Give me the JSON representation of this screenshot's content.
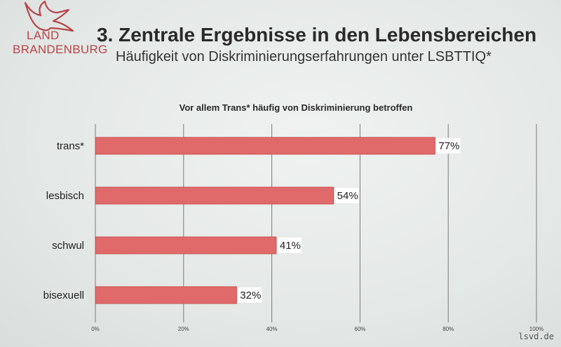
{
  "logo": {
    "line1": "LAND",
    "line2": "BRANDENBURG"
  },
  "header": {
    "title": "3. Zentrale Ergebnisse in den Lebensbereichen",
    "subtitle": "Häufigkeit von Diskriminierungserfahrungen unter LSBTTIQ*"
  },
  "watermark": "lsvd.de",
  "colors": {
    "bar": "#e06a6a",
    "bar_stroke": "#c94f4f",
    "grid": "#7a7a7a",
    "logo": "#b8454a"
  },
  "chart_data": {
    "type": "bar",
    "orientation": "horizontal",
    "title": "Vor allem Trans* häufig von Diskriminierung betroffen",
    "categories": [
      "trans*",
      "lesbisch",
      "schwul",
      "bisexuell"
    ],
    "values": [
      77,
      54,
      41,
      32
    ],
    "value_labels": [
      "77%",
      "54%",
      "41%",
      "32%"
    ],
    "xlim": [
      0,
      100
    ],
    "xticks": [
      0,
      20,
      40,
      60,
      80,
      100
    ],
    "xtick_labels": [
      "0%",
      "20%",
      "40%",
      "60%",
      "80%",
      "100%"
    ],
    "grid": true,
    "legend": "none"
  }
}
